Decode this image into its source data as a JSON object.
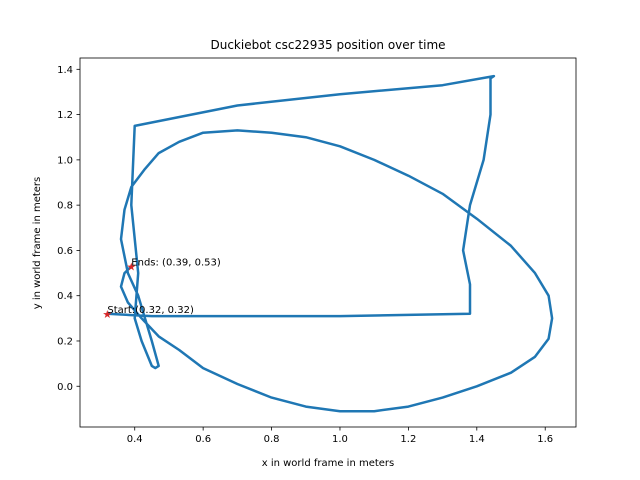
{
  "chart_data": {
    "type": "line",
    "title": "Duckiebot csc22935 position over time",
    "xlabel": "x in world frame in meters",
    "ylabel": "y in world frame in meters",
    "xlim": [
      0.24,
      1.69
    ],
    "ylim": [
      -0.18,
      1.45
    ],
    "xticks": [
      0.4,
      0.6,
      0.8,
      1.0,
      1.2,
      1.4,
      1.6
    ],
    "yticks": [
      0.0,
      0.2,
      0.4,
      0.6,
      0.8,
      1.0,
      1.2,
      1.4
    ],
    "xtick_labels": [
      "0.4",
      "0.6",
      "0.8",
      "1.0",
      "1.2",
      "1.4",
      "1.6"
    ],
    "ytick_labels": [
      "0.0",
      "0.2",
      "0.4",
      "0.6",
      "0.8",
      "1.0",
      "1.2",
      "1.4"
    ],
    "grid": false,
    "line_color": "#1f77b4",
    "marker_color": "#d62728",
    "series": [
      {
        "x": [
          0.32,
          0.45,
          0.6,
          0.8,
          1.0,
          1.2,
          1.38,
          1.38,
          1.36,
          1.38,
          1.42,
          1.44,
          1.44,
          1.45,
          1.3,
          1.0,
          0.7,
          0.4,
          0.39,
          0.41,
          0.4,
          0.42,
          0.45,
          0.46,
          0.47,
          0.45,
          0.43,
          0.41,
          0.38,
          0.36,
          0.37,
          0.39,
          0.43,
          0.47,
          0.53,
          0.6,
          0.7,
          0.8,
          0.9,
          1.0,
          1.1,
          1.2,
          1.3,
          1.4,
          1.5,
          1.57,
          1.61,
          1.62,
          1.61,
          1.57,
          1.5,
          1.4,
          1.3,
          1.2,
          1.1,
          1.0,
          0.9,
          0.8,
          0.7,
          0.6,
          0.53,
          0.47,
          0.42,
          0.38,
          0.36,
          0.37,
          0.39
        ],
        "y": [
          0.32,
          0.31,
          0.31,
          0.31,
          0.31,
          0.315,
          0.32,
          0.45,
          0.6,
          0.8,
          1.0,
          1.2,
          1.36,
          1.37,
          1.33,
          1.29,
          1.24,
          1.15,
          0.8,
          0.5,
          0.3,
          0.2,
          0.09,
          0.08,
          0.09,
          0.2,
          0.3,
          0.4,
          0.5,
          0.65,
          0.78,
          0.88,
          0.96,
          1.03,
          1.08,
          1.12,
          1.13,
          1.12,
          1.1,
          1.06,
          1.0,
          0.93,
          0.85,
          0.74,
          0.62,
          0.5,
          0.4,
          0.3,
          0.21,
          0.13,
          0.06,
          0.0,
          -0.05,
          -0.09,
          -0.11,
          -0.11,
          -0.09,
          -0.05,
          0.01,
          0.08,
          0.16,
          0.22,
          0.3,
          0.37,
          0.44,
          0.5,
          0.53
        ]
      }
    ],
    "annotations": [
      {
        "text": "Ends: (0.39, 0.53)",
        "x": 0.39,
        "y": 0.53
      },
      {
        "text": "Start:(0.32, 0.32)",
        "x": 0.32,
        "y": 0.32
      }
    ]
  }
}
